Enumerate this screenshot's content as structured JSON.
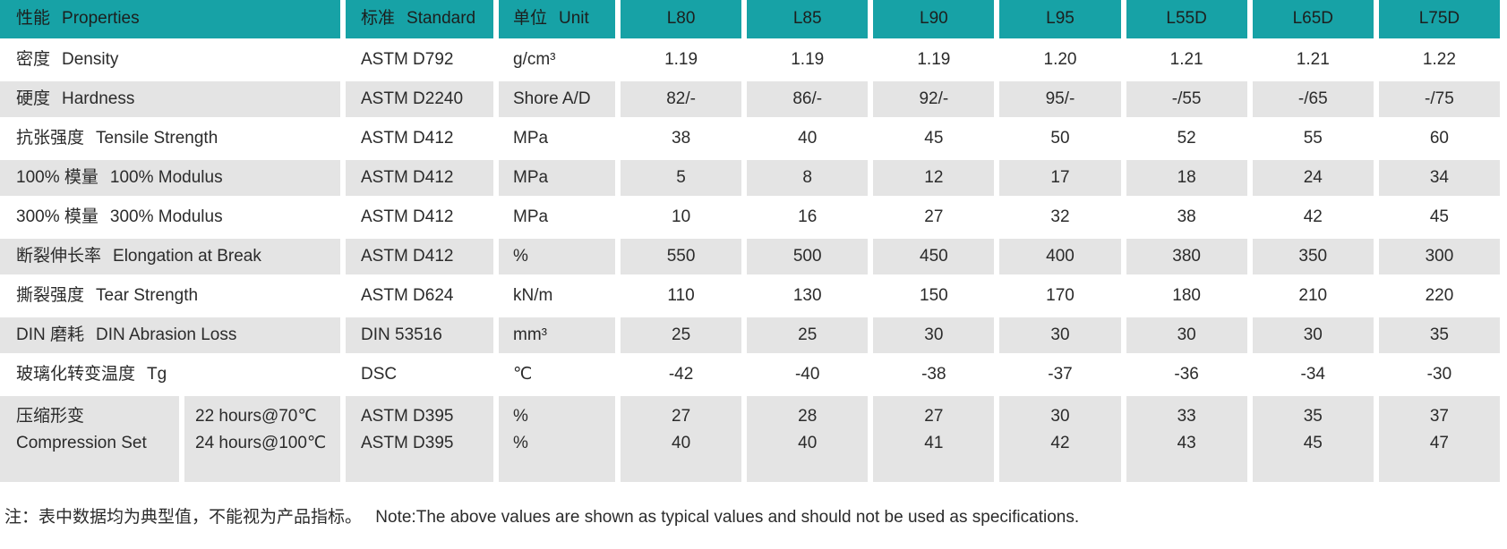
{
  "colors": {
    "header_bg": "#17a2a6",
    "row_alt_bg": "#e4e4e4"
  },
  "table": {
    "header": {
      "properties_zh": "性能",
      "properties_en": "Properties",
      "standard_zh": "标准",
      "standard_en": "Standard",
      "unit_zh": "单位",
      "unit_en": "Unit",
      "grades": [
        "L80",
        "L85",
        "L90",
        "L95",
        "L55D",
        "L65D",
        "L75D"
      ]
    },
    "rows": [
      {
        "zh": "密度",
        "en": "Density",
        "standard": "ASTM D792",
        "unit": "g/cm³",
        "values": [
          "1.19",
          "1.19",
          "1.19",
          "1.20",
          "1.21",
          "1.21",
          "1.22"
        ]
      },
      {
        "zh": "硬度",
        "en": "Hardness",
        "standard": "ASTM D2240",
        "unit": "Shore A/D",
        "values": [
          "82/-",
          "86/-",
          "92/-",
          "95/-",
          "-/55",
          "-/65",
          "-/75"
        ]
      },
      {
        "zh": "抗张强度",
        "en": "Tensile Strength",
        "standard": "ASTM D412",
        "unit": "MPa",
        "values": [
          "38",
          "40",
          "45",
          "50",
          "52",
          "55",
          "60"
        ]
      },
      {
        "zh": "100% 模量",
        "en": "100% Modulus",
        "standard": "ASTM D412",
        "unit": "MPa",
        "values": [
          "5",
          "8",
          "12",
          "17",
          "18",
          "24",
          "34"
        ]
      },
      {
        "zh": "300% 模量",
        "en": "300% Modulus",
        "standard": "ASTM D412",
        "unit": "MPa",
        "values": [
          "10",
          "16",
          "27",
          "32",
          "38",
          "42",
          "45"
        ]
      },
      {
        "zh": "断裂伸长率",
        "en": "Elongation at Break",
        "standard": "ASTM D412",
        "unit": "%",
        "values": [
          "550",
          "500",
          "450",
          "400",
          "380",
          "350",
          "300"
        ]
      },
      {
        "zh": "撕裂强度",
        "en": "Tear Strength",
        "standard": "ASTM D624",
        "unit": "kN/m",
        "values": [
          "110",
          "130",
          "150",
          "170",
          "180",
          "210",
          "220"
        ]
      },
      {
        "zh": "DIN 磨耗",
        "en": "DIN Abrasion Loss",
        "standard": "DIN 53516",
        "unit": "mm³",
        "values": [
          "25",
          "25",
          "30",
          "30",
          "30",
          "30",
          "35"
        ]
      },
      {
        "zh": "玻璃化转变温度",
        "en": "Tg",
        "standard": "DSC",
        "unit": "℃",
        "values": [
          "-42",
          "-40",
          "-38",
          "-37",
          "-36",
          "-34",
          "-30"
        ]
      }
    ],
    "compression": {
      "zh": "压缩形变",
      "en": "Compression Set",
      "conditions": [
        "22 hours@70℃",
        "24 hours@100℃"
      ],
      "standards": [
        "ASTM D395",
        "ASTM D395"
      ],
      "units": [
        "%",
        "%"
      ],
      "values": [
        [
          "27",
          "40"
        ],
        [
          "28",
          "40"
        ],
        [
          "27",
          "41"
        ],
        [
          "30",
          "42"
        ],
        [
          "33",
          "43"
        ],
        [
          "35",
          "45"
        ],
        [
          "37",
          "47"
        ]
      ]
    },
    "note_zh": "注：表中数据均为典型值，不能视为产品指标。",
    "note_en": "Note:The above values are shown as typical values and should not be used as specifications."
  }
}
